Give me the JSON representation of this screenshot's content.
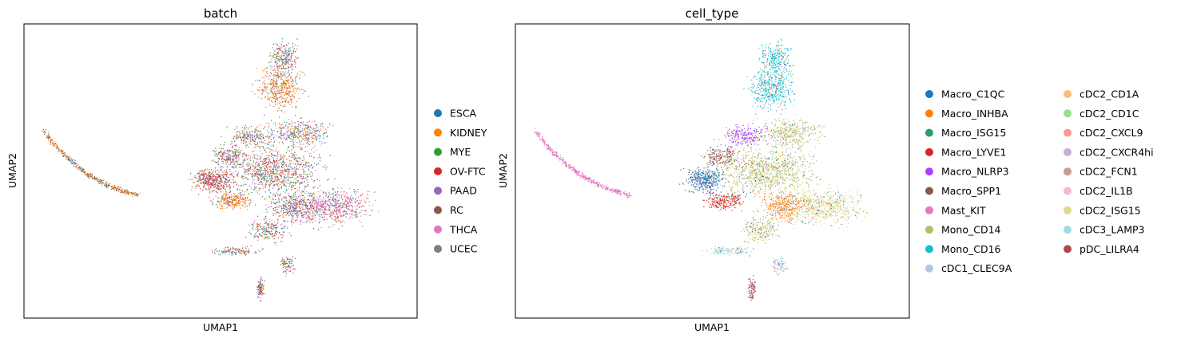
{
  "chart_data": [
    {
      "type": "scatter",
      "title": "batch",
      "xlabel": "UMAP1",
      "ylabel": "UMAP2",
      "xticks": "none",
      "yticks": "none",
      "grid": false,
      "legend_placement": "right",
      "legend_columns": 1,
      "series": [
        {
          "name": "ESCA",
          "color": "#1f77b4"
        },
        {
          "name": "KIDNEY",
          "color": "#ff7f0e"
        },
        {
          "name": "MYE",
          "color": "#2ca02c"
        },
        {
          "name": "OV-FTC",
          "color": "#d62728"
        },
        {
          "name": "PAAD",
          "color": "#9467bd"
        },
        {
          "name": "RC",
          "color": "#8c564b"
        },
        {
          "name": "THCA",
          "color": "#e377c2"
        },
        {
          "name": "UCEC",
          "color": "#7f7f7f"
        }
      ]
    },
    {
      "type": "scatter",
      "title": "cell_type",
      "xlabel": "UMAP1",
      "ylabel": "UMAP2",
      "xticks": "none",
      "yticks": "none",
      "grid": false,
      "legend_placement": "right",
      "legend_columns": 2,
      "series": [
        {
          "name": "Macro_C1QC",
          "color": "#1f77b4"
        },
        {
          "name": "Macro_INHBA",
          "color": "#ff7f0e"
        },
        {
          "name": "Macro_ISG15",
          "color": "#279e68"
        },
        {
          "name": "Macro_LYVE1",
          "color": "#d62728"
        },
        {
          "name": "Macro_NLRP3",
          "color": "#aa40fc"
        },
        {
          "name": "Macro_SPP1",
          "color": "#8c564b"
        },
        {
          "name": "Mast_KIT",
          "color": "#e377c2"
        },
        {
          "name": "Mono_CD14",
          "color": "#b5bd61"
        },
        {
          "name": "Mono_CD16",
          "color": "#17becf"
        },
        {
          "name": "cDC1_CLEC9A",
          "color": "#aec7e8"
        },
        {
          "name": "cDC2_CD1A",
          "color": "#ffbb78"
        },
        {
          "name": "cDC2_CD1C",
          "color": "#98df8a"
        },
        {
          "name": "cDC2_CXCL9",
          "color": "#ff9896"
        },
        {
          "name": "cDC2_CXCR4hi",
          "color": "#c5b0d5"
        },
        {
          "name": "cDC2_FCN1",
          "color": "#c49c94"
        },
        {
          "name": "cDC2_IL1B",
          "color": "#f7b6d2"
        },
        {
          "name": "cDC2_ISG15",
          "color": "#dbdb8d"
        },
        {
          "name": "cDC3_LAMP3",
          "color": "#9edae5"
        },
        {
          "name": "pDC_LILRA4",
          "color": "#ad494a"
        }
      ]
    }
  ]
}
